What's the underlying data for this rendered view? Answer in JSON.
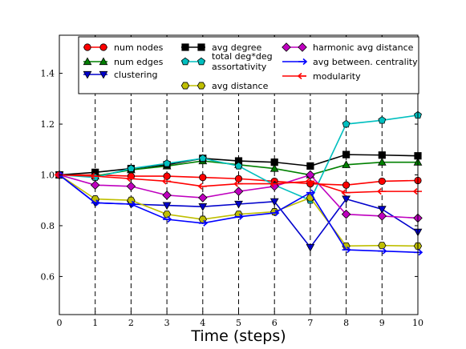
{
  "chart_data": {
    "type": "line",
    "xlabel": "Time (steps)",
    "ylabel": "",
    "title": "",
    "x": [
      0,
      1,
      2,
      3,
      4,
      5,
      6,
      7,
      8,
      9,
      10
    ],
    "xlim": [
      0,
      10
    ],
    "ylim": [
      0.45,
      1.55
    ],
    "xticks": [
      "0",
      "1",
      "2",
      "3",
      "4",
      "5",
      "6",
      "7",
      "8",
      "9",
      "10"
    ],
    "yticks": [
      "0.6",
      "0.8",
      "1.0",
      "1.2",
      "1.4"
    ],
    "ytick_values": [
      0.6,
      0.8,
      1.0,
      1.2,
      1.4
    ],
    "vlines": [
      1,
      2,
      3,
      4,
      5,
      6,
      7,
      8,
      9
    ],
    "grid": false,
    "legend_position": "top",
    "series": [
      {
        "name": "num nodes",
        "color": "#ff0000",
        "marker": "circle",
        "values": [
          1.0,
          1.0,
          0.995,
          0.995,
          0.99,
          0.985,
          0.975,
          0.965,
          0.96,
          0.975,
          0.978
        ]
      },
      {
        "name": "num edges",
        "color": "#008000",
        "marker": "triangle-up",
        "values": [
          1.0,
          0.995,
          1.02,
          1.035,
          1.055,
          1.04,
          1.025,
          1.0,
          1.04,
          1.05,
          1.05
        ]
      },
      {
        "name": "clustering",
        "color": "#0000cc",
        "marker": "triangle-down",
        "values": [
          1.0,
          0.89,
          0.885,
          0.88,
          0.875,
          0.885,
          0.895,
          0.715,
          0.905,
          0.865,
          0.775
        ]
      },
      {
        "name": "avg degree",
        "color": "#000000",
        "marker": "square",
        "values": [
          1.0,
          1.01,
          1.025,
          1.04,
          1.065,
          1.055,
          1.05,
          1.035,
          1.08,
          1.078,
          1.075
        ]
      },
      {
        "name": "total deg*deg\nassortativity",
        "color": "#00bfbf",
        "marker": "pentagon",
        "values": [
          1.0,
          0.99,
          1.025,
          1.045,
          1.065,
          1.035,
          0.96,
          0.9,
          1.2,
          1.215,
          1.235
        ]
      },
      {
        "name": "avg distance",
        "color": "#bfbf00",
        "marker": "hexagon",
        "values": [
          1.0,
          0.905,
          0.9,
          0.845,
          0.825,
          0.845,
          0.855,
          0.91,
          0.72,
          0.722,
          0.72
        ]
      },
      {
        "name": "harmonic avg distance",
        "color": "#bf00bf",
        "marker": "diamond",
        "values": [
          1.0,
          0.96,
          0.955,
          0.92,
          0.91,
          0.935,
          0.955,
          1.0,
          0.845,
          0.838,
          0.83
        ]
      },
      {
        "name": "avg between. centrality",
        "color": "#0000ff",
        "marker": "arrow-right",
        "values": [
          1.0,
          0.89,
          0.885,
          0.825,
          0.81,
          0.835,
          0.85,
          0.93,
          0.705,
          0.7,
          0.695
        ]
      },
      {
        "name": "modularity",
        "color": "#ff0000",
        "marker": "arrow-left",
        "values": [
          1.0,
          0.995,
          0.985,
          0.975,
          0.955,
          0.965,
          0.965,
          0.975,
          0.93,
          0.935,
          0.935
        ]
      }
    ]
  }
}
